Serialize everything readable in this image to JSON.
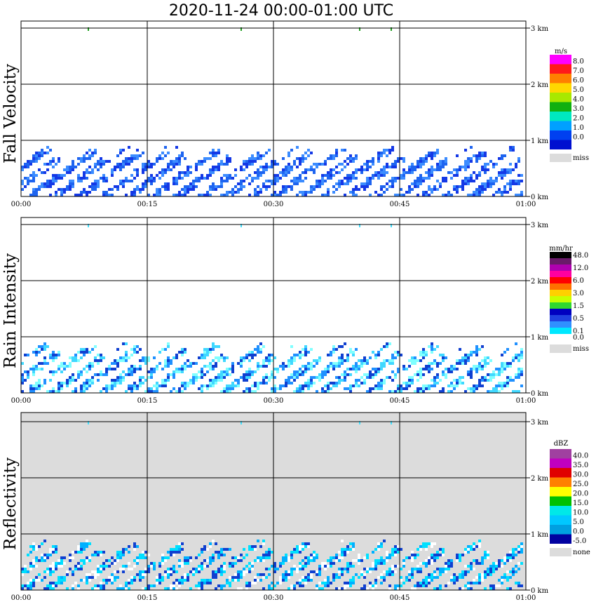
{
  "chart_data": {
    "type": "heatmap",
    "title": "2020-11-24   00:00-01:00 UTC",
    "x_ticks": [
      "00:00",
      "00:15",
      "00:30",
      "00:45",
      "01:00"
    ],
    "y_ticks": [
      "0 km",
      "1 km",
      "2 km",
      "3 km"
    ],
    "ylim_km": [
      0,
      3.2
    ],
    "xlim_min": [
      0,
      60
    ],
    "panels": [
      {
        "name": "Fall Velocity",
        "background": "#ffffff",
        "unit": "m/s",
        "scale": [
          {
            "label": "8.0",
            "color": "#ff00ff"
          },
          {
            "label": "7.0",
            "color": "#ff1a1a"
          },
          {
            "label": "6.0",
            "color": "#ff8000"
          },
          {
            "label": "5.0",
            "color": "#ffd800"
          },
          {
            "label": "4.0",
            "color": "#a8e800"
          },
          {
            "label": "3.0",
            "color": "#10b010"
          },
          {
            "label": "2.0",
            "color": "#00e8c0"
          },
          {
            "label": "1.0",
            "color": "#00a0ff"
          },
          {
            "label": "0.0",
            "color": "#0040f0"
          },
          {
            "label": "",
            "color": "#0010d0"
          }
        ],
        "missing": {
          "label": "miss",
          "color": "#dcdcdc"
        },
        "echo_colors": [
          "#1438e6",
          "#1e64f0",
          "#3c8cff"
        ],
        "top_mark": "#20a020"
      },
      {
        "name": "Rain Intensity",
        "background": "#ffffff",
        "unit": "mm/hr",
        "scale": [
          {
            "label": "48.0",
            "color": "#000000"
          },
          {
            "label": "",
            "color": "#6a1a6a"
          },
          {
            "label": "12.0",
            "color": "#b000b0"
          },
          {
            "label": "",
            "color": "#ff00a0"
          },
          {
            "label": "6.0",
            "color": "#ff0000"
          },
          {
            "label": "",
            "color": "#ff7000"
          },
          {
            "label": "3.0",
            "color": "#ffd000"
          },
          {
            "label": "",
            "color": "#c8ff00"
          },
          {
            "label": "1.5",
            "color": "#30d830"
          },
          {
            "label": "",
            "color": "#0000c0"
          },
          {
            "label": "0.5",
            "color": "#2040e0"
          },
          {
            "label": "",
            "color": "#3090ff"
          },
          {
            "label": "0.1",
            "color": "#00e8ff"
          },
          {
            "label": "0.0",
            "color": "#ffffff"
          }
        ],
        "missing": {
          "label": "miss",
          "color": "#dcdcdc"
        },
        "echo_colors": [
          "#80ffff",
          "#40d8ff",
          "#2090ff",
          "#1040d0"
        ],
        "top_mark": "#40e0ff"
      },
      {
        "name": "Reflectivity",
        "background": "#dcdcdc",
        "unit": "dBZ",
        "scale": [
          {
            "label": "40.0",
            "color": "#a040a0"
          },
          {
            "label": "35.0",
            "color": "#c000c0"
          },
          {
            "label": "30.0",
            "color": "#e00000"
          },
          {
            "label": "25.0",
            "color": "#ff8000"
          },
          {
            "label": "20.0",
            "color": "#ffff00"
          },
          {
            "label": "15.0",
            "color": "#00c000"
          },
          {
            "label": "10.0",
            "color": "#00e8e8"
          },
          {
            "label": "5.0",
            "color": "#00c8ff"
          },
          {
            "label": "0.0",
            "color": "#00a0e0"
          },
          {
            "label": "-5.0",
            "color": "#0000a0"
          }
        ],
        "missing": {
          "label": "none",
          "color": "#dcdcdc"
        },
        "echo_colors": [
          "#00e0ff",
          "#00b0ff",
          "#1040d0",
          "#ffffff"
        ],
        "top_mark": "#40e0ff"
      }
    ]
  }
}
